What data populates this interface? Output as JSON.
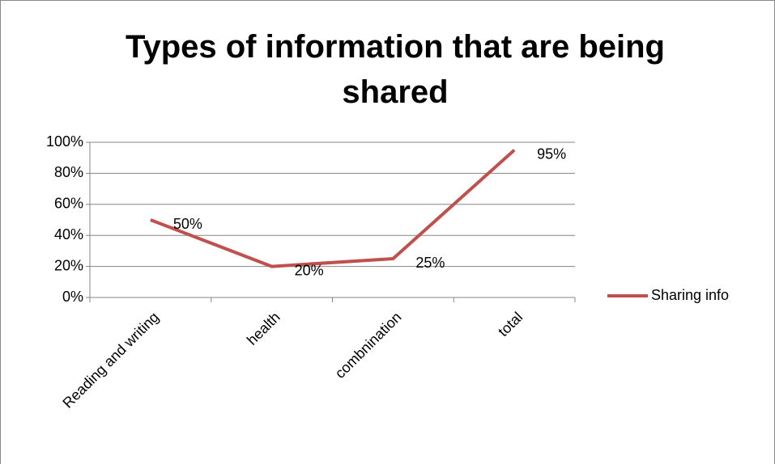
{
  "chart_data": {
    "type": "line",
    "title": "Types of information that are being shared",
    "categories": [
      "Reading and writing",
      "health",
      "combnination",
      "total"
    ],
    "series": [
      {
        "name": "Sharing info",
        "color": "#c0504d",
        "values": [
          50,
          20,
          25,
          95
        ],
        "value_labels": [
          "50%",
          "20%",
          "25%",
          "95%"
        ]
      }
    ],
    "ylim": [
      0,
      100
    ],
    "yticks": [
      {
        "value": 0,
        "label": "0%"
      },
      {
        "value": 20,
        "label": "20%"
      },
      {
        "value": 40,
        "label": "40%"
      },
      {
        "value": 60,
        "label": "60%"
      },
      {
        "value": 80,
        "label": "80%"
      },
      {
        "value": 100,
        "label": "100%"
      }
    ],
    "grid": true,
    "legend": "right"
  }
}
